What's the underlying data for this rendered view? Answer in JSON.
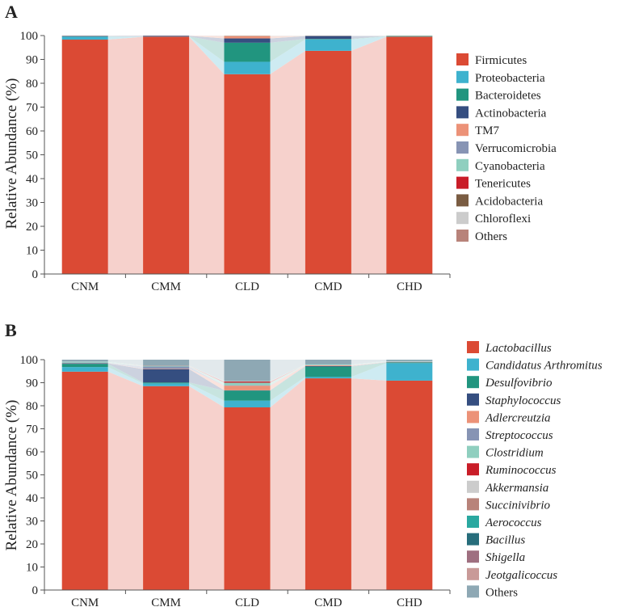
{
  "chart_data": [
    {
      "type": "bar",
      "stacked": true,
      "panel_label": "A",
      "title": "",
      "xlabel": "",
      "ylabel": "Relative Abundance (%)",
      "ylim": [
        0,
        100
      ],
      "yticks": [
        0,
        10,
        20,
        30,
        40,
        50,
        60,
        70,
        80,
        90,
        100
      ],
      "categories": [
        "CNM",
        "CMM",
        "CLD",
        "CMD",
        "CHD"
      ],
      "legend_italic": false,
      "legend_position": "right",
      "series": [
        {
          "name": "Firmicutes",
          "color": "#db4a34",
          "values": [
            98.3,
            99.5,
            83.8,
            93.6,
            99.5
          ]
        },
        {
          "name": "Proteobacteria",
          "color": "#3eb2ce",
          "values": [
            1.2,
            0.1,
            5.2,
            4.8,
            0.1
          ]
        },
        {
          "name": "Bacteroidetes",
          "color": "#21957f",
          "values": [
            0.1,
            0.0,
            8.0,
            0.2,
            0.2
          ]
        },
        {
          "name": "Actinobacteria",
          "color": "#354e80",
          "values": [
            0.2,
            0.3,
            1.8,
            1.2,
            0.0
          ]
        },
        {
          "name": "TM7",
          "color": "#ec9278",
          "values": [
            0.0,
            0.0,
            1.0,
            0.0,
            0.0
          ]
        },
        {
          "name": "Verrucomicrobia",
          "color": "#8794b4",
          "values": [
            0.0,
            0.0,
            0.0,
            0.0,
            0.0
          ]
        },
        {
          "name": "Cyanobacteria",
          "color": "#8fcfbf",
          "values": [
            0.1,
            0.0,
            0.1,
            0.1,
            0.1
          ]
        },
        {
          "name": "Tenericutes",
          "color": "#c91d28",
          "values": [
            0.0,
            0.0,
            0.0,
            0.0,
            0.0
          ]
        },
        {
          "name": "Acidobacteria",
          "color": "#7a5c42",
          "values": [
            0.0,
            0.0,
            0.0,
            0.0,
            0.0
          ]
        },
        {
          "name": "Chloroflexi",
          "color": "#cccccc",
          "values": [
            0.0,
            0.0,
            0.0,
            0.0,
            0.0
          ]
        },
        {
          "name": "Others",
          "color": "#b8837a",
          "values": [
            0.1,
            0.1,
            0.1,
            0.1,
            0.1
          ]
        }
      ]
    },
    {
      "type": "bar",
      "stacked": true,
      "panel_label": "B",
      "title": "",
      "xlabel": "",
      "ylabel": "Relative Abundance (%)",
      "ylim": [
        0,
        100
      ],
      "yticks": [
        0,
        10,
        20,
        30,
        40,
        50,
        60,
        70,
        80,
        90,
        100
      ],
      "categories": [
        "CNM",
        "CMM",
        "CLD",
        "CMD",
        "CHD"
      ],
      "legend_italic": true,
      "legend_position": "right",
      "series": [
        {
          "name": "Lactobacillus",
          "color": "#db4a34",
          "values": [
            94.8,
            88.5,
            79.3,
            91.9,
            90.9
          ]
        },
        {
          "name": "Candidatus Arthromitus",
          "color": "#3eb2ce",
          "values": [
            2.0,
            1.2,
            2.9,
            0.6,
            7.6
          ]
        },
        {
          "name": "Desulfovibrio",
          "color": "#21957f",
          "values": [
            1.4,
            0.4,
            4.4,
            4.5,
            0.3
          ]
        },
        {
          "name": "Staphylococcus",
          "color": "#354e80",
          "values": [
            0.2,
            5.8,
            0.1,
            0.2,
            0.1
          ]
        },
        {
          "name": "Adlercreutzia",
          "color": "#ec9278",
          "values": [
            0.1,
            0.2,
            2.0,
            0.3,
            0.1
          ]
        },
        {
          "name": "Streptococcus",
          "color": "#8794b4",
          "values": [
            0.2,
            0.9,
            0.2,
            0.1,
            0.1
          ]
        },
        {
          "name": "Clostridium",
          "color": "#8fcfbf",
          "values": [
            0.3,
            0.2,
            1.1,
            0.2,
            0.1
          ]
        },
        {
          "name": "Ruminococcus",
          "color": "#c91d28",
          "values": [
            0.0,
            0.1,
            0.5,
            0.0,
            0.0
          ]
        },
        {
          "name": "Akkermansia",
          "color": "#cccccc",
          "values": [
            0.1,
            0.1,
            0.2,
            0.1,
            0.1
          ]
        },
        {
          "name": "Succinivibrio",
          "color": "#b8837a",
          "values": [
            0.0,
            0.0,
            0.0,
            0.0,
            0.0
          ]
        },
        {
          "name": "Aerococcus",
          "color": "#2aa8a0",
          "values": [
            0.1,
            0.1,
            0.1,
            0.1,
            0.1
          ]
        },
        {
          "name": "Bacillus",
          "color": "#276d7b",
          "values": [
            0.0,
            0.0,
            0.0,
            0.0,
            0.0
          ]
        },
        {
          "name": "Shigella",
          "color": "#9f6f80",
          "values": [
            0.0,
            0.0,
            0.0,
            0.0,
            0.0
          ]
        },
        {
          "name": "Jeotgalicoccus",
          "color": "#c99a98",
          "values": [
            0.0,
            0.0,
            0.0,
            0.0,
            0.0
          ]
        },
        {
          "name": "Others",
          "color": "#8ea8b4",
          "values": [
            0.8,
            2.5,
            9.2,
            2.0,
            0.6
          ]
        }
      ]
    }
  ]
}
